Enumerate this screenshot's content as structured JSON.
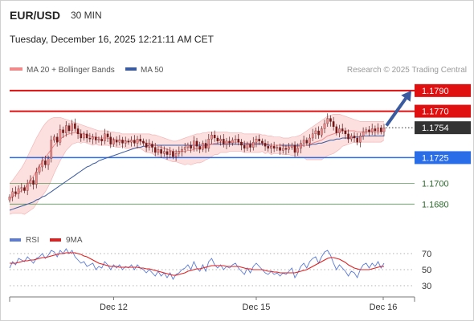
{
  "header": {
    "symbol": "EUR/USD",
    "timeframe": "30 MIN",
    "datetime": "Tuesday, December 16, 2025 12:21:11 AM CET"
  },
  "legend": {
    "ma20_label": "MA 20 + Bollinger Bands",
    "ma50_label": "MA 50",
    "ma20_color": "#f08a8a",
    "ma50_color": "#3a5ba0",
    "copyright": "Research © 2025 Trading Central"
  },
  "rsi_legend": {
    "rsi_label": "RSI",
    "ma_label": "9MA",
    "rsi_color": "#5b7bd5",
    "ma_color": "#e02020"
  },
  "chart_data": [
    {
      "type": "candlestick",
      "ylim": [
        1.166,
        1.18
      ],
      "x_ticks": [
        "Dec 12",
        "Dec 15",
        "Dec 16"
      ],
      "levels": [
        {
          "label": "1.1790",
          "value": 1.179,
          "kind": "resistance",
          "color": "#e01010"
        },
        {
          "label": "1.1770",
          "value": 1.177,
          "kind": "resistance",
          "color": "#e01010"
        },
        {
          "label": "1.1754",
          "value": 1.1754,
          "kind": "last-price",
          "color": "#333333"
        },
        {
          "label": "1.1725",
          "value": 1.1725,
          "kind": "pivot",
          "color": "#2a6de8"
        },
        {
          "label": "1.1700",
          "value": 1.17,
          "kind": "support",
          "color": "#3a8a3a"
        },
        {
          "label": "1.1680",
          "value": 1.168,
          "kind": "support",
          "color": "#3a8a3a"
        }
      ],
      "close": [
        1.1687,
        1.1692,
        1.169,
        1.1695,
        1.1696,
        1.1693,
        1.17,
        1.1703,
        1.1699,
        1.1711,
        1.1716,
        1.1722,
        1.1718,
        1.1724,
        1.1742,
        1.1745,
        1.174,
        1.1752,
        1.1749,
        1.1756,
        1.1751,
        1.1758,
        1.1753,
        1.1748,
        1.1744,
        1.1748,
        1.1744,
        1.1743,
        1.1745,
        1.1742,
        1.1743,
        1.1741,
        1.1748,
        1.1745,
        1.1738,
        1.1742,
        1.174,
        1.1742,
        1.1739,
        1.1741,
        1.174,
        1.1742,
        1.1739,
        1.1743,
        1.1741,
        1.1739,
        1.1735,
        1.1738,
        1.1735,
        1.173,
        1.1733,
        1.1729,
        1.1731,
        1.1728,
        1.1731,
        1.1726,
        1.1729,
        1.1731,
        1.1733,
        1.1735,
        1.1737,
        1.1734,
        1.1741,
        1.1736,
        1.1733,
        1.1739,
        1.1734,
        1.1743,
        1.1747,
        1.1744,
        1.1741,
        1.1743,
        1.1738,
        1.1741,
        1.1739,
        1.1742,
        1.1743,
        1.174,
        1.1737,
        1.1734,
        1.1738,
        1.1735,
        1.174,
        1.1743,
        1.1741,
        1.1739,
        1.1736,
        1.1734,
        1.1736,
        1.1734,
        1.1735,
        1.1732,
        1.1734,
        1.1733,
        1.1735,
        1.1737,
        1.173,
        1.1734,
        1.1739,
        1.1742,
        1.1739,
        1.1744,
        1.1748,
        1.1751,
        1.1747,
        1.1753,
        1.1758,
        1.1763,
        1.176,
        1.1755,
        1.1749,
        1.1753,
        1.1751,
        1.1748,
        1.1743,
        1.1746,
        1.1744,
        1.174,
        1.1746,
        1.175,
        1.1752,
        1.175,
        1.1753,
        1.1751,
        1.1754,
        1.175,
        1.1754
      ],
      "ma20": [
        1.1685,
        1.1687,
        1.1689,
        1.1691,
        1.1693,
        1.1695,
        1.1699,
        1.1703,
        1.1707,
        1.1712,
        1.1717,
        1.1721,
        1.1725,
        1.1729,
        1.1733,
        1.1737,
        1.174,
        1.1743,
        1.1745,
        1.1747,
        1.1748,
        1.1749,
        1.1749,
        1.1749,
        1.1748,
        1.1748,
        1.1747,
        1.1746,
        1.1745,
        1.1745,
        1.1744,
        1.1744,
        1.1744,
        1.1744,
        1.1743,
        1.1743,
        1.1742,
        1.1742,
        1.1742,
        1.1741,
        1.1741,
        1.1741,
        1.1741,
        1.1741,
        1.1741,
        1.174,
        1.1739,
        1.1739,
        1.1738,
        1.1737,
        1.1736,
        1.1735,
        1.1734,
        1.1733,
        1.1732,
        1.1731,
        1.1731,
        1.1731,
        1.1731,
        1.1731,
        1.1732,
        1.1732,
        1.1733,
        1.1734,
        1.1734,
        1.1735,
        1.1736,
        1.1737,
        1.1738,
        1.1739,
        1.1739,
        1.174,
        1.174,
        1.174,
        1.174,
        1.174,
        1.174,
        1.174,
        1.174,
        1.1739,
        1.1739,
        1.1739,
        1.1739,
        1.1739,
        1.1739,
        1.1739,
        1.1738,
        1.1738,
        1.1737,
        1.1737,
        1.1737,
        1.1737,
        1.1736,
        1.1736,
        1.1736,
        1.1736,
        1.1736,
        1.1736,
        1.1736,
        1.1737,
        1.1737,
        1.1738,
        1.1739,
        1.174,
        1.1741,
        1.1742,
        1.1744,
        1.1746,
        1.1747,
        1.1748,
        1.1749,
        1.175,
        1.1751,
        1.1751,
        1.1751,
        1.1751,
        1.1751,
        1.175,
        1.175,
        1.175,
        1.175,
        1.175,
        1.175,
        1.175,
        1.175,
        1.175,
        1.1751
      ],
      "bb_upper": [
        1.17,
        1.1703,
        1.1707,
        1.1711,
        1.1715,
        1.172,
        1.1726,
        1.1732,
        1.1738,
        1.1744,
        1.1749,
        1.1754,
        1.1758,
        1.1761,
        1.1763,
        1.1764,
        1.1764,
        1.1764,
        1.1763,
        1.1762,
        1.1761,
        1.176,
        1.1759,
        1.1758,
        1.1757,
        1.1756,
        1.1755,
        1.1754,
        1.1753,
        1.1752,
        1.1751,
        1.1751,
        1.1751,
        1.1751,
        1.175,
        1.175,
        1.1749,
        1.1749,
        1.1748,
        1.1748,
        1.1748,
        1.1748,
        1.1748,
        1.1748,
        1.1748,
        1.1748,
        1.1748,
        1.1748,
        1.1747,
        1.1747,
        1.1746,
        1.1745,
        1.1744,
        1.1743,
        1.1742,
        1.1741,
        1.1741,
        1.1742,
        1.1743,
        1.1744,
        1.1745,
        1.1746,
        1.1747,
        1.1748,
        1.1748,
        1.1749,
        1.1749,
        1.175,
        1.175,
        1.175,
        1.175,
        1.175,
        1.175,
        1.175,
        1.1749,
        1.1749,
        1.1749,
        1.1749,
        1.1749,
        1.1748,
        1.1748,
        1.1748,
        1.1748,
        1.1748,
        1.1748,
        1.1747,
        1.1747,
        1.1746,
        1.1746,
        1.1745,
        1.1745,
        1.1745,
        1.1744,
        1.1744,
        1.1744,
        1.1745,
        1.1745,
        1.1746,
        1.1747,
        1.1749,
        1.1751,
        1.1753,
        1.1755,
        1.1757,
        1.1759,
        1.1761,
        1.1763,
        1.1765,
        1.1766,
        1.1767,
        1.1767,
        1.1767,
        1.1766,
        1.1765,
        1.1764,
        1.1763,
        1.1762,
        1.1761,
        1.176,
        1.176,
        1.176,
        1.176,
        1.176,
        1.176,
        1.176,
        1.176,
        1.176
      ],
      "bb_lower": [
        1.167,
        1.1671,
        1.1671,
        1.1671,
        1.1671,
        1.167,
        1.1672,
        1.1674,
        1.1676,
        1.168,
        1.1685,
        1.1688,
        1.1692,
        1.1697,
        1.1703,
        1.171,
        1.1716,
        1.1722,
        1.1727,
        1.1732,
        1.1735,
        1.1738,
        1.1739,
        1.174,
        1.1739,
        1.174,
        1.1739,
        1.1738,
        1.1737,
        1.1738,
        1.1737,
        1.1737,
        1.1737,
        1.1737,
        1.1736,
        1.1736,
        1.1735,
        1.1735,
        1.1736,
        1.1734,
        1.1734,
        1.1734,
        1.1734,
        1.1734,
        1.1734,
        1.1732,
        1.173,
        1.173,
        1.1729,
        1.1727,
        1.1726,
        1.1725,
        1.1724,
        1.1723,
        1.1722,
        1.1721,
        1.1721,
        1.172,
        1.1719,
        1.1718,
        1.1719,
        1.1718,
        1.1719,
        1.172,
        1.172,
        1.1721,
        1.1723,
        1.1724,
        1.1726,
        1.1728,
        1.1728,
        1.173,
        1.173,
        1.173,
        1.1731,
        1.1731,
        1.1731,
        1.1731,
        1.1731,
        1.173,
        1.173,
        1.173,
        1.173,
        1.173,
        1.173,
        1.1731,
        1.1729,
        1.173,
        1.1728,
        1.1729,
        1.1729,
        1.1729,
        1.1728,
        1.1728,
        1.1728,
        1.1727,
        1.1727,
        1.1726,
        1.1725,
        1.1725,
        1.1723,
        1.1723,
        1.1723,
        1.1723,
        1.1723,
        1.1723,
        1.1725,
        1.1727,
        1.1728,
        1.1729,
        1.1731,
        1.1733,
        1.1736,
        1.1737,
        1.1738,
        1.1739,
        1.174,
        1.1739,
        1.174,
        1.174,
        1.174,
        1.174,
        1.174,
        1.174,
        1.174,
        1.174,
        1.1742
      ],
      "ma50": [
        1.1674,
        1.1675,
        1.1676,
        1.1677,
        1.1678,
        1.1679,
        1.168,
        1.1681,
        1.1682,
        1.1684,
        1.1685,
        1.1687,
        1.1688,
        1.169,
        1.1692,
        1.1694,
        1.1696,
        1.1698,
        1.17,
        1.1702,
        1.1704,
        1.1706,
        1.1708,
        1.171,
        1.1712,
        1.1714,
        1.1716,
        1.1717,
        1.1719,
        1.172,
        1.1722,
        1.1723,
        1.1724,
        1.1725,
        1.1726,
        1.1727,
        1.1728,
        1.1729,
        1.173,
        1.1731,
        1.1732,
        1.1733,
        1.1734,
        1.1735,
        1.1735,
        1.1736,
        1.1736,
        1.1737,
        1.1737,
        1.1737,
        1.1737,
        1.1737,
        1.1737,
        1.1737,
        1.1737,
        1.1737,
        1.1737,
        1.1737,
        1.1737,
        1.1737,
        1.1737,
        1.1737,
        1.1737,
        1.1737,
        1.1737,
        1.1737,
        1.1737,
        1.1738,
        1.1738,
        1.1738,
        1.1738,
        1.1738,
        1.1738,
        1.1738,
        1.1738,
        1.1738,
        1.1738,
        1.1738,
        1.1738,
        1.1738,
        1.1738,
        1.1738,
        1.1738,
        1.1738,
        1.1738,
        1.1738,
        1.1738,
        1.1737,
        1.1737,
        1.1737,
        1.1737,
        1.1737,
        1.1737,
        1.1737,
        1.1737,
        1.1737,
        1.1737,
        1.1737,
        1.1737,
        1.1737,
        1.1737,
        1.1737,
        1.1738,
        1.1738,
        1.1739,
        1.1739,
        1.174,
        1.1741,
        1.1742,
        1.1742,
        1.1743,
        1.1743,
        1.1744,
        1.1744,
        1.1744,
        1.1744,
        1.1745,
        1.1745,
        1.1745,
        1.1746,
        1.1746,
        1.1746,
        1.1746,
        1.1746,
        1.1746,
        1.1746,
        1.1746
      ],
      "forecast_arrow": {
        "from": 1.1756,
        "to": 1.179,
        "color": "#3a5ba0"
      }
    },
    {
      "type": "line",
      "ylim": [
        20,
        80
      ],
      "y_ticks": [
        "70",
        "50",
        "30"
      ],
      "dotted_levels": [
        70,
        50,
        30
      ],
      "rsi": [
        52,
        60,
        56,
        64,
        62,
        60,
        66,
        62,
        58,
        64,
        66,
        70,
        64,
        68,
        74,
        72,
        66,
        74,
        70,
        76,
        70,
        74,
        66,
        62,
        58,
        60,
        54,
        56,
        58,
        50,
        54,
        52,
        60,
        56,
        50,
        56,
        52,
        56,
        50,
        54,
        52,
        56,
        50,
        56,
        52,
        50,
        46,
        50,
        46,
        42,
        48,
        42,
        46,
        40,
        46,
        38,
        44,
        46,
        50,
        52,
        56,
        50,
        60,
        52,
        48,
        56,
        48,
        60,
        64,
        56,
        52,
        56,
        50,
        54,
        52,
        56,
        58,
        52,
        48,
        44,
        52,
        46,
        54,
        58,
        54,
        50,
        46,
        44,
        48,
        44,
        46,
        42,
        46,
        44,
        48,
        52,
        40,
        46,
        54,
        58,
        52,
        60,
        64,
        66,
        58,
        66,
        72,
        74,
        68,
        58,
        50,
        56,
        52,
        48,
        42,
        48,
        46,
        40,
        50,
        56,
        58,
        52,
        58,
        54,
        60,
        52,
        58
      ],
      "ma9": [
        58,
        58,
        58,
        59,
        60,
        61,
        61,
        62,
        62,
        63,
        64,
        65,
        65,
        66,
        67,
        68,
        69,
        70,
        70,
        71,
        71,
        71,
        71,
        70,
        69,
        67,
        66,
        64,
        62,
        60,
        58,
        57,
        56,
        55,
        54,
        54,
        54,
        53,
        53,
        53,
        53,
        53,
        53,
        53,
        52,
        52,
        51,
        51,
        50,
        49,
        48,
        47,
        46,
        45,
        44,
        43,
        43,
        44,
        45,
        46,
        48,
        49,
        50,
        51,
        51,
        52,
        53,
        54,
        55,
        55,
        55,
        55,
        55,
        54,
        54,
        54,
        54,
        54,
        53,
        52,
        51,
        51,
        50,
        50,
        50,
        50,
        49,
        48,
        48,
        47,
        47,
        46,
        46,
        46,
        46,
        46,
        46,
        47,
        48,
        49,
        50,
        52,
        54,
        56,
        58,
        60,
        62,
        64,
        65,
        65,
        64,
        63,
        61,
        59,
        56,
        54,
        52,
        51,
        50,
        50,
        50,
        50,
        51,
        52,
        53,
        54,
        54
      ]
    }
  ]
}
